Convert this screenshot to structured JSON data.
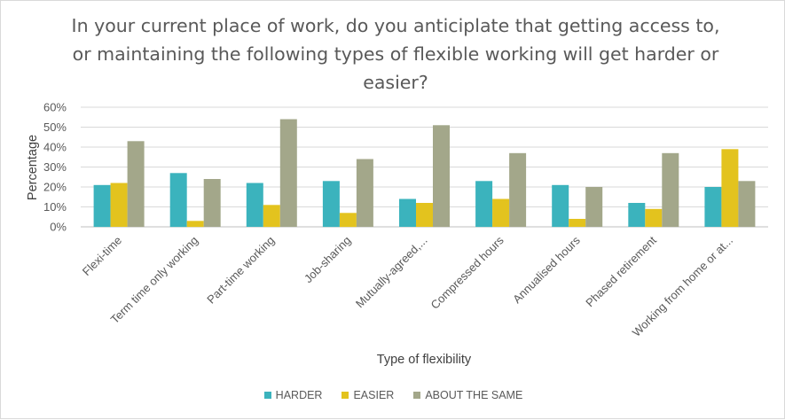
{
  "chart_data": {
    "type": "bar",
    "title": "In your current place of work, do you anticiplate that getting access to, or maintaining the following types of flexible working will get harder or easier?",
    "title_lines": [
      "In your current place of work, do you anticiplate that getting access to,",
      "or maintaining the following types of flexible working will get harder or",
      "easier?"
    ],
    "xlabel": "Type of flexibility",
    "ylabel": "Percentage",
    "ylim": [
      0,
      60
    ],
    "yticks": [
      "0%",
      "10%",
      "20%",
      "30%",
      "40%",
      "50%",
      "60%"
    ],
    "grid": true,
    "legend_position": "bottom",
    "categories": [
      "Flexi-time",
      "Term time only working",
      "Part-time working",
      "Job-sharing",
      "Mutually-agreed,...",
      "Compressed hours",
      "Annualised hours",
      "Phased retirement",
      "Working from home or at..."
    ],
    "series": [
      {
        "name": "HARDER",
        "color": "#3bb3bd",
        "values": [
          21,
          27,
          22,
          23,
          14,
          23,
          21,
          12,
          20
        ]
      },
      {
        "name": "EASIER",
        "color": "#e3c31e",
        "values": [
          22,
          3,
          11,
          7,
          12,
          14,
          4,
          9,
          39
        ]
      },
      {
        "name": "ABOUT THE SAME",
        "color": "#a3a78a",
        "values": [
          43,
          24,
          54,
          34,
          51,
          37,
          20,
          37,
          23
        ]
      }
    ]
  }
}
